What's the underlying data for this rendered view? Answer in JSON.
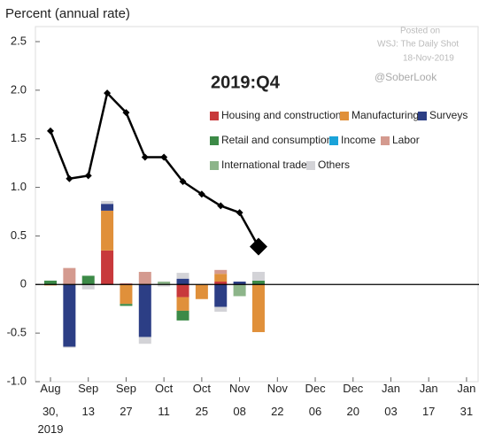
{
  "chart_data": {
    "type": "bar",
    "y_label": "Percent (annual rate)",
    "annotation": "2019:Q4",
    "watermark": [
      "Posted on",
      "WSJ: The Daily Shot",
      "18-Nov-2019",
      "@SoberLook"
    ],
    "categories": [
      [
        "Aug",
        "30,",
        "2019"
      ],
      null,
      [
        "Sep",
        "13"
      ],
      null,
      [
        "Sep",
        "27"
      ],
      null,
      [
        "Oct",
        "11"
      ],
      null,
      [
        "Oct",
        "25"
      ],
      null,
      [
        "Nov",
        "08"
      ],
      null,
      [
        "Nov",
        "22"
      ],
      null,
      [
        "Dec",
        "06"
      ],
      null,
      [
        "Dec",
        "20"
      ],
      null,
      [
        "Jan",
        "03"
      ],
      null,
      [
        "Jan",
        "17"
      ],
      null,
      [
        "Jan",
        "31"
      ]
    ],
    "series": [
      {
        "name": "Housing and construction",
        "color": "#c8393b",
        "values": [
          0,
          0,
          0,
          0.35,
          0.01,
          0,
          0,
          -0.13,
          0,
          0.03,
          0,
          0,
          null,
          null,
          null,
          null,
          null,
          null,
          null,
          null,
          null,
          null,
          null
        ]
      },
      {
        "name": "Manufacturing",
        "color": "#e0903a",
        "values": [
          -0.01,
          0,
          0,
          0.41,
          -0.2,
          0,
          0,
          -0.14,
          -0.15,
          0.08,
          0,
          -0.49,
          null,
          null,
          null,
          null,
          null,
          null,
          null,
          null,
          null,
          null,
          null
        ]
      },
      {
        "name": "Surveys",
        "color": "#2c3e85",
        "values": [
          0,
          -0.64,
          0,
          0.07,
          0,
          -0.54,
          0,
          0.06,
          0,
          -0.23,
          0.03,
          0,
          null,
          null,
          null,
          null,
          null,
          null,
          null,
          null,
          null,
          null,
          null
        ]
      },
      {
        "name": "Retail and consumption",
        "color": "#3c8a47",
        "values": [
          0.04,
          0,
          0.09,
          0,
          -0.02,
          0,
          0,
          -0.1,
          0,
          0,
          0,
          0.04,
          null,
          null,
          null,
          null,
          null,
          null,
          null,
          null,
          null,
          null,
          null
        ]
      },
      {
        "name": "Income",
        "color": "#1aa3d9",
        "values": [
          0,
          0,
          0,
          0,
          0,
          0,
          0,
          0,
          0,
          0,
          0,
          0,
          null,
          null,
          null,
          null,
          null,
          null,
          null,
          null,
          null,
          null,
          null
        ]
      },
      {
        "name": "Labor",
        "color": "#d49a8f",
        "values": [
          0,
          0.17,
          0,
          0,
          0,
          0.13,
          0,
          0,
          0,
          0.04,
          0,
          0,
          null,
          null,
          null,
          null,
          null,
          null,
          null,
          null,
          null,
          null,
          null
        ]
      },
      {
        "name": "International trade",
        "color": "#8db58a",
        "values": [
          0,
          0,
          0,
          0,
          0,
          0,
          0.03,
          0,
          0,
          0,
          -0.12,
          0,
          null,
          null,
          null,
          null,
          null,
          null,
          null,
          null,
          null,
          null,
          null
        ]
      },
      {
        "name": "Others",
        "color": "#d3d3d7",
        "values": [
          0,
          -0.01,
          -0.05,
          0.03,
          0,
          -0.07,
          -0.02,
          0.06,
          0,
          -0.05,
          0,
          0.09,
          null,
          null,
          null,
          null,
          null,
          null,
          null,
          null,
          null,
          null,
          null
        ]
      }
    ],
    "line": {
      "color": "#000000",
      "values": [
        1.58,
        1.09,
        1.12,
        1.97,
        1.77,
        1.31,
        1.31,
        1.06,
        0.93,
        0.81,
        0.74,
        0.39,
        null,
        null,
        null,
        null,
        null,
        null,
        null,
        null,
        null,
        null,
        null
      ]
    },
    "ylim": [
      -1.0,
      2.5
    ],
    "yticks": [
      2.5,
      {
        "value": 2,
        "label": "2.0"
      },
      1.5,
      {
        "value": 1,
        "label": "1.0"
      },
      0.5,
      0,
      -0.5,
      {
        "value": -1,
        "label": "-1.0"
      }
    ]
  }
}
